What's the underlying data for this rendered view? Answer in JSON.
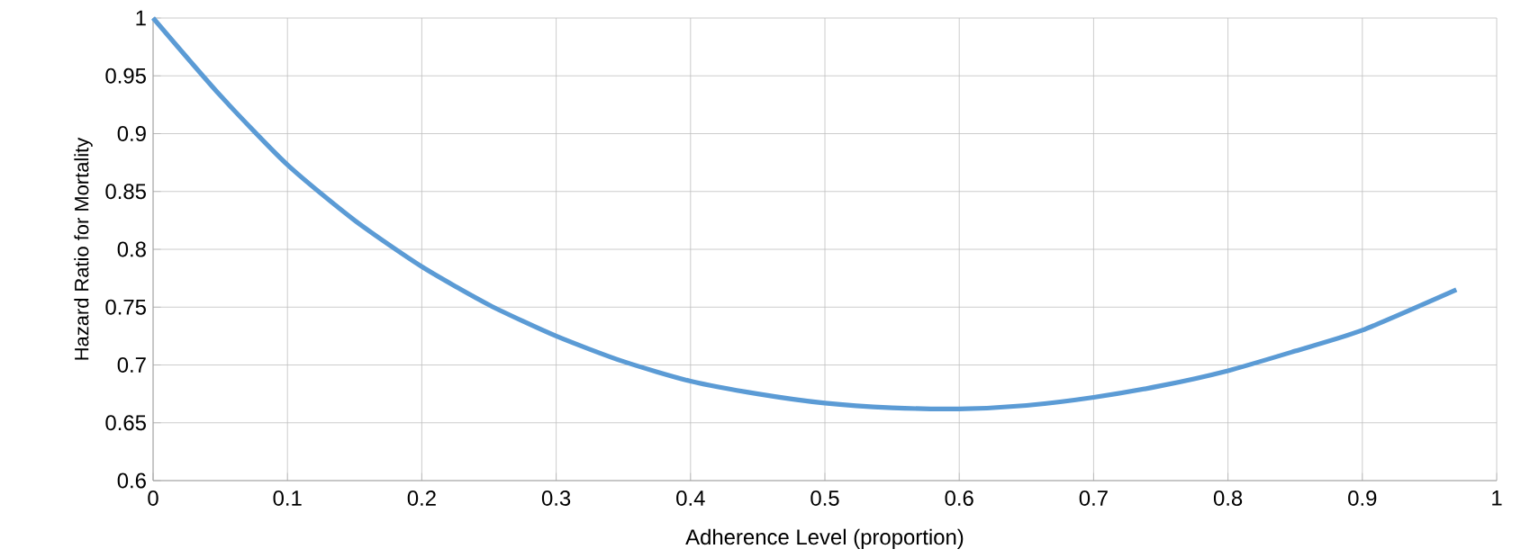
{
  "chart_data": {
    "type": "line",
    "xlabel": "Adherence Level (proportion)",
    "ylabel": "Hazard Ratio for Mortality",
    "x": [
      0,
      0.05,
      0.1,
      0.15,
      0.2,
      0.25,
      0.3,
      0.35,
      0.4,
      0.45,
      0.5,
      0.55,
      0.6,
      0.65,
      0.7,
      0.75,
      0.8,
      0.85,
      0.9,
      0.97
    ],
    "series": [
      {
        "color": "#5b9bd5",
        "values": [
          1.0,
          0.933,
          0.873,
          0.825,
          0.785,
          0.752,
          0.725,
          0.703,
          0.686,
          0.675,
          0.667,
          0.663,
          0.662,
          0.665,
          0.672,
          0.682,
          0.695,
          0.712,
          0.73,
          0.765
        ]
      }
    ],
    "xlim": [
      0,
      1
    ],
    "ylim": [
      0.6,
      1
    ],
    "xticks": [
      0,
      0.1,
      0.2,
      0.3,
      0.4,
      0.5,
      0.6,
      0.7,
      0.8,
      0.9,
      1
    ],
    "yticks": [
      0.6,
      0.65,
      0.7,
      0.75,
      0.8,
      0.85,
      0.9,
      0.95,
      1
    ],
    "grid": true,
    "marker": "none",
    "line_style": "solid"
  }
}
